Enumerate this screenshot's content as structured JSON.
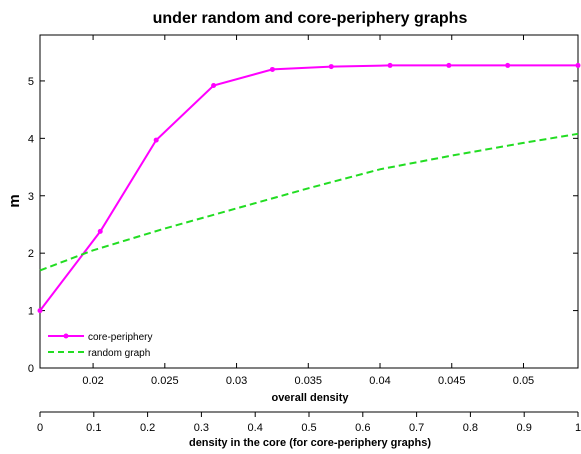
{
  "chart_data": {
    "type": "line",
    "title": "under random  and core-periphery graphs",
    "xlabel": "overall density",
    "x2label": "density in the core (for core-periphery graphs)",
    "ylabel": "m",
    "xlim": [
      0.0163,
      0.0538
    ],
    "ylim": [
      0,
      5.8
    ],
    "x_ticks": [
      0.02,
      0.025,
      0.03,
      0.035,
      0.04,
      0.045,
      0.05
    ],
    "x_tick_labels": [
      "0.02",
      "0.025",
      "0.03",
      "0.035",
      "0.04",
      "0.045",
      "0.05"
    ],
    "y_ticks": [
      0,
      1,
      2,
      3,
      4,
      5
    ],
    "y_tick_labels": [
      "0",
      "1",
      "2",
      "3",
      "4",
      "5"
    ],
    "x2lim": [
      0,
      1
    ],
    "x2_ticks": [
      0,
      0.1,
      0.2,
      0.3,
      0.4,
      0.5,
      0.6,
      0.7,
      0.8,
      0.9,
      1
    ],
    "x2_tick_labels": [
      "0",
      "0.1",
      "0.2",
      "0.3",
      "0.4",
      "0.5",
      "0.6",
      "0.7",
      "0.8",
      "0.9",
      "1"
    ],
    "grid": false,
    "legend_position": "bottom-left",
    "series": [
      {
        "name": "core-periphery",
        "color": "#ff00ff",
        "style": "solid",
        "marker": "dot",
        "x": [
          0.0163,
          0.0205,
          0.0244,
          0.0284,
          0.0325,
          0.0366,
          0.0407,
          0.0448,
          0.0489,
          0.0538
        ],
        "y": [
          1.0,
          2.38,
          3.97,
          4.92,
          5.2,
          5.25,
          5.27,
          5.27,
          5.27,
          5.27
        ]
      },
      {
        "name": "random graph",
        "color": "#22dd22",
        "style": "dashed",
        "marker": "none",
        "x": [
          0.0163,
          0.02,
          0.025,
          0.03,
          0.035,
          0.04,
          0.045,
          0.05,
          0.0538
        ],
        "y": [
          1.7,
          2.05,
          2.43,
          2.78,
          3.13,
          3.46,
          3.7,
          3.92,
          4.08
        ]
      }
    ]
  }
}
